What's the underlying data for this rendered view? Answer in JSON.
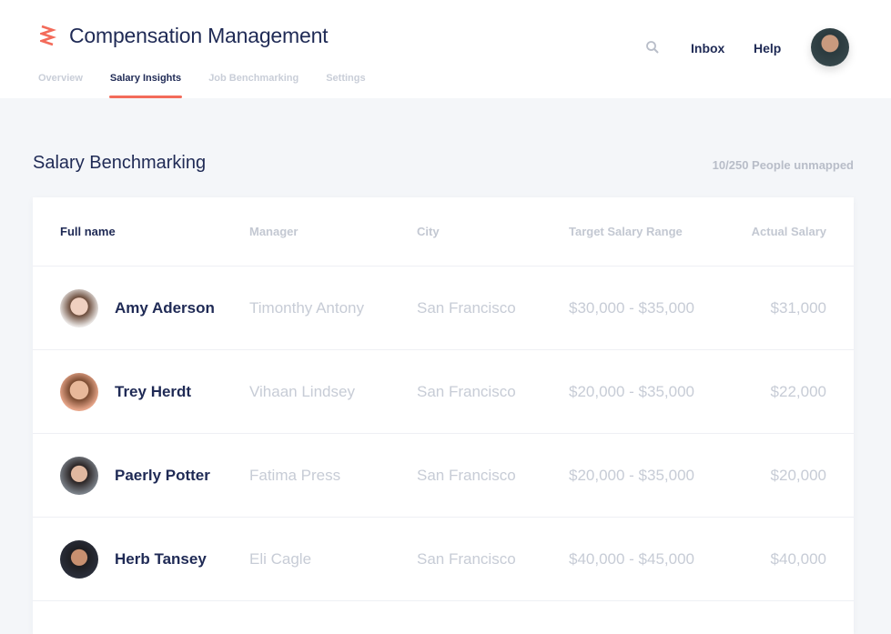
{
  "app": {
    "title": "Compensation Management",
    "tabs": [
      {
        "label": "Overview"
      },
      {
        "label": "Salary Insights",
        "active": true
      },
      {
        "label": "Job Benchmarking"
      },
      {
        "label": "Settings"
      }
    ],
    "nav": {
      "inbox": "Inbox",
      "help": "Help",
      "search_icon": "search-icon"
    },
    "accent": "#f36b5a"
  },
  "main": {
    "title": "Salary Benchmarking",
    "unmapped": "10/250 People unmapped",
    "columns": [
      "Full name",
      "Manager",
      "City",
      "Target Salary Range",
      "Actual Salary"
    ],
    "rows": [
      {
        "name": "Amy Aderson",
        "manager": "Timonthy Antony",
        "city": "San Francisco",
        "range": "$30,000 - $35,000",
        "actual": "$31,000"
      },
      {
        "name": "Trey Herdt",
        "manager": "Vihaan Lindsey",
        "city": "San Francisco",
        "range": "$20,000 - $35,000",
        "actual": "$22,000"
      },
      {
        "name": "Paerly Potter",
        "manager": "Fatima Press",
        "city": "San Francisco",
        "range": "$20,000 - $35,000",
        "actual": "$20,000"
      },
      {
        "name": "Herb Tansey",
        "manager": "Eli Cagle",
        "city": "San Francisco",
        "range": "$40,000 - $45,000",
        "actual": "$40,000"
      }
    ]
  }
}
